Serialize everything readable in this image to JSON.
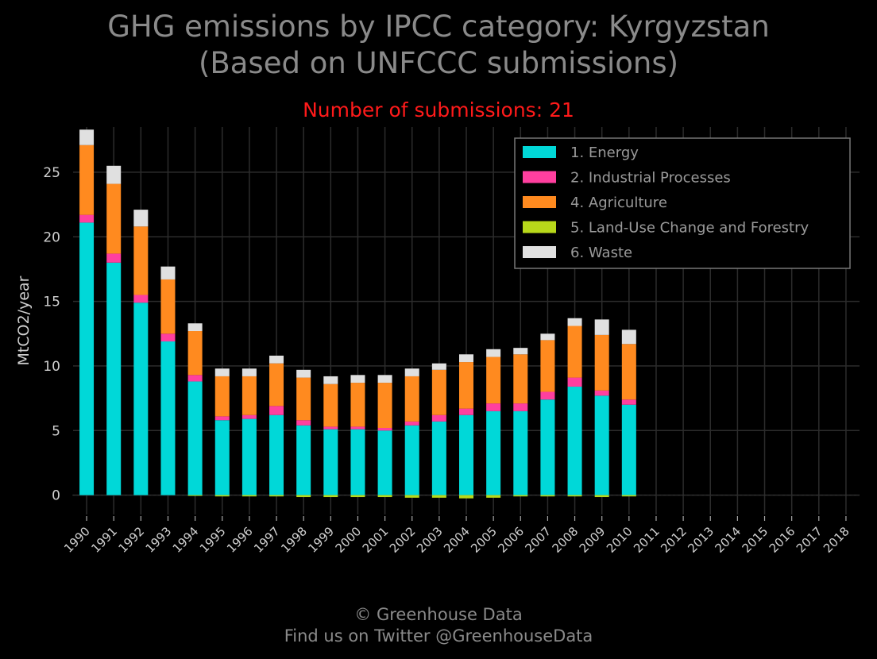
{
  "title_line1": "GHG emissions by IPCC category: Kyrgyzstan",
  "title_line2": "(Based on UNFCCC submissions)",
  "subtitle": "Number of submissions: 21",
  "footer_line1": "© Greenhouse Data",
  "footer_line2": "Find us on Twitter @GreenhouseData",
  "chart_data": {
    "type": "bar",
    "stacked": true,
    "ylabel": "MtCO2/year",
    "xlabel": "",
    "ylim": [
      -1.5,
      28.5
    ],
    "yticks": [
      0,
      5,
      10,
      15,
      20,
      25
    ],
    "grid": true,
    "legend_position": "top-right",
    "categories": [
      "1990",
      "1991",
      "1992",
      "1993",
      "1994",
      "1995",
      "1996",
      "1997",
      "1998",
      "1999",
      "2000",
      "2001",
      "2002",
      "2003",
      "2004",
      "2005",
      "2006",
      "2007",
      "2008",
      "2009",
      "2010",
      "2011",
      "2012",
      "2013",
      "2014",
      "2015",
      "2016",
      "2017",
      "2018"
    ],
    "series": [
      {
        "name": "1. Energy",
        "color": "#00d8d8",
        "values": [
          21.1,
          18.0,
          14.9,
          11.9,
          8.8,
          5.8,
          5.9,
          6.2,
          5.4,
          5.1,
          5.1,
          5.0,
          5.4,
          5.7,
          6.2,
          6.5,
          6.5,
          7.4,
          8.4,
          7.7,
          7.0,
          null,
          null,
          null,
          null,
          null,
          null,
          null,
          null
        ]
      },
      {
        "name": "2. Industrial Processes",
        "color": "#ff3f9f",
        "values": [
          0.6,
          0.7,
          0.6,
          0.6,
          0.5,
          0.3,
          0.3,
          0.7,
          0.4,
          0.2,
          0.2,
          0.2,
          0.3,
          0.5,
          0.5,
          0.6,
          0.6,
          0.6,
          0.7,
          0.4,
          0.4,
          null,
          null,
          null,
          null,
          null,
          null,
          null,
          null
        ]
      },
      {
        "name": "4. Agriculture",
        "color": "#ff8a1f",
        "values": [
          5.4,
          5.4,
          5.3,
          4.2,
          3.4,
          3.1,
          3.0,
          3.3,
          3.3,
          3.3,
          3.4,
          3.5,
          3.5,
          3.5,
          3.6,
          3.6,
          3.8,
          4.0,
          4.0,
          4.3,
          4.3,
          null,
          null,
          null,
          null,
          null,
          null,
          null,
          null
        ]
      },
      {
        "name": "5. Land-Use Change and Forestry",
        "color": "#b8d81a",
        "values": [
          0.0,
          0.0,
          0.0,
          0.0,
          -0.05,
          -0.1,
          -0.1,
          -0.1,
          -0.15,
          -0.15,
          -0.15,
          -0.15,
          -0.2,
          -0.2,
          -0.25,
          -0.2,
          -0.1,
          -0.1,
          -0.1,
          -0.15,
          -0.1,
          null,
          null,
          null,
          null,
          null,
          null,
          null,
          null
        ]
      },
      {
        "name": "6. Waste",
        "color": "#e0e0e0",
        "values": [
          1.2,
          1.4,
          1.3,
          1.0,
          0.6,
          0.6,
          0.6,
          0.6,
          0.6,
          0.6,
          0.6,
          0.6,
          0.6,
          0.5,
          0.6,
          0.6,
          0.5,
          0.5,
          0.6,
          1.2,
          1.1,
          null,
          null,
          null,
          null,
          null,
          null,
          null,
          null
        ]
      }
    ]
  }
}
